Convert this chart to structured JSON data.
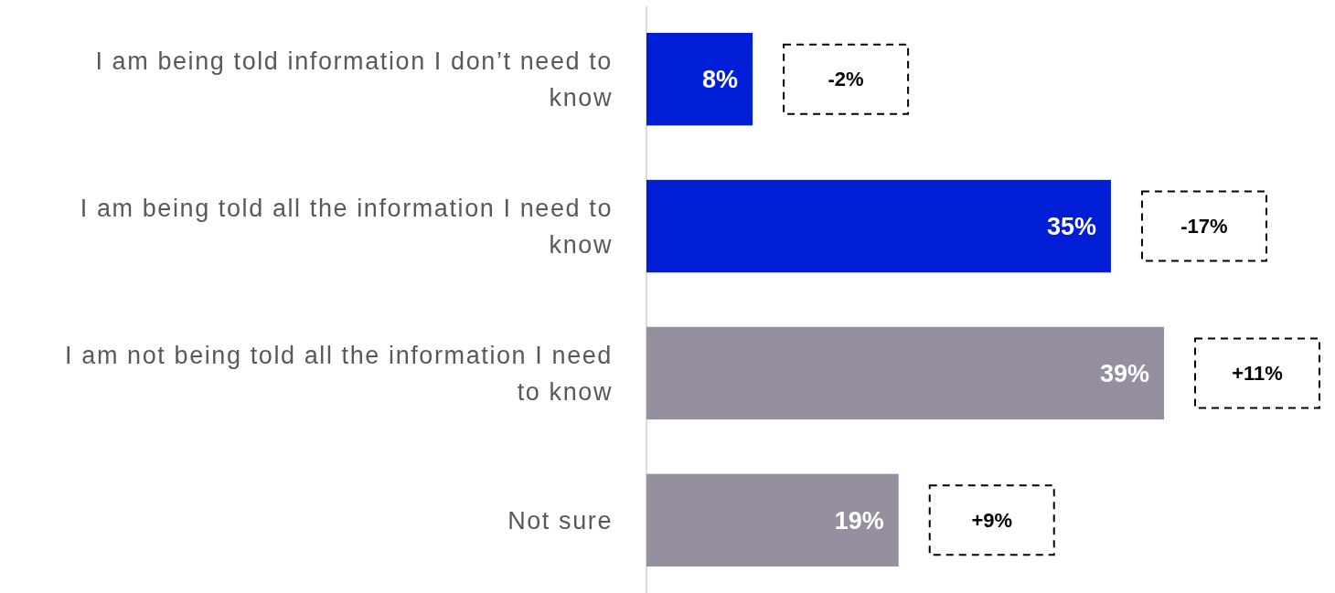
{
  "chart_data": {
    "type": "bar",
    "orientation": "horizontal",
    "categories": [
      "I am being told information I don’t need to know",
      "I am being told all the information I need to know",
      "I am not being told all the information I need to know",
      "Not sure"
    ],
    "values": [
      8,
      35,
      39,
      19
    ],
    "value_labels": [
      "8%",
      "35%",
      "39%",
      "19%"
    ],
    "colors": [
      "#001ed6",
      "#001ed6",
      "#958fa0",
      "#958fa0"
    ],
    "annotations": [
      "-2%",
      "-17%",
      "+11%",
      "+9%"
    ]
  }
}
